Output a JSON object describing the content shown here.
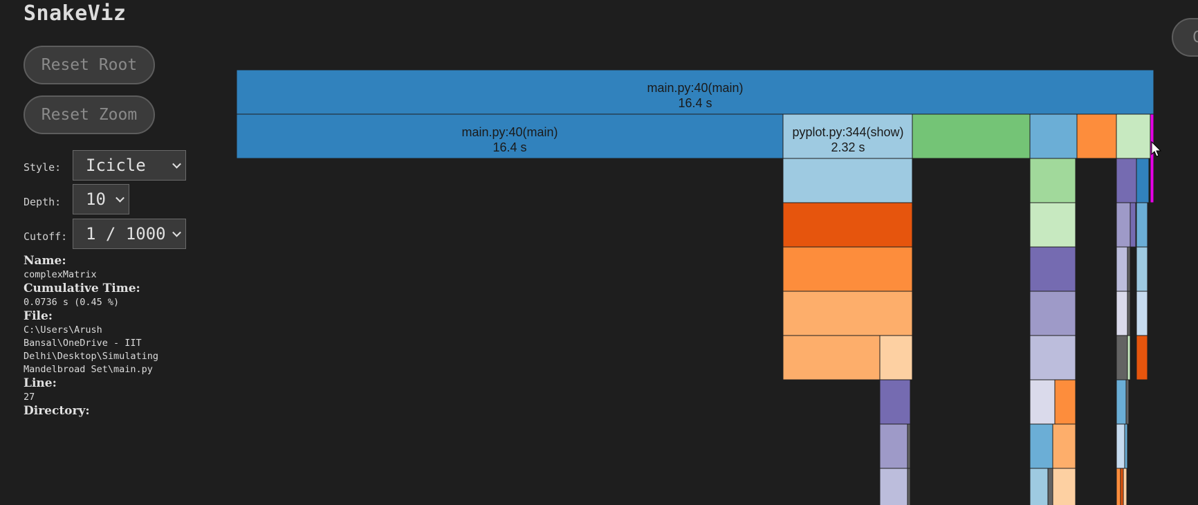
{
  "app": {
    "title": "SnakeViz"
  },
  "controls": {
    "reset_root_label": "Reset Root",
    "reset_zoom_label": "Reset Zoom",
    "style_label": "Style:",
    "style_value": "Icicle",
    "depth_label": "Depth:",
    "depth_value": "10",
    "cutoff_label": "Cutoff:",
    "cutoff_value": "1 / 1000",
    "top_right_button_label": "C"
  },
  "info": {
    "name_heading": "Name:",
    "name_value": "complexMatrix",
    "cumtime_heading": "Cumulative Time:",
    "cumtime_value": "0.0736 s (0.45 %)",
    "file_heading": "File:",
    "file_value": "C:\\Users\\Arush\nBansal\\OneDrive - IIT\nDelhi\\Desktop\\Simulating\nMandelbroad Set\\main.py",
    "line_heading": "Line:",
    "line_value": "27",
    "directory_heading": "Directory:"
  },
  "icicle": {
    "labeled_blocks": [
      {
        "label": "main.py:40(main)",
        "time": "16.4 s"
      },
      {
        "label": "main.py:40(main)",
        "time": "16.4 s"
      },
      {
        "label": "pyplot.py:344(show)",
        "time": "2.32 s"
      }
    ],
    "colors": {
      "blue": "#3182bd",
      "light_blue": "#6baed6",
      "pale_blue": "#9ecae1",
      "very_pale_blue": "#c6dbef",
      "dark_orange": "#e6550d",
      "orange": "#fd8d3c",
      "light_orange": "#fdae6b",
      "pale_orange": "#fdd0a2",
      "green": "#74c476",
      "light_green": "#a1d99b",
      "pale_green": "#c7e9c0",
      "purple": "#756bb1",
      "light_purple": "#9e9ac8",
      "pale_purple": "#bcbddc",
      "very_pale_purple": "#dadaeb",
      "gray": "#636363",
      "magenta": "#e600e6"
    }
  }
}
